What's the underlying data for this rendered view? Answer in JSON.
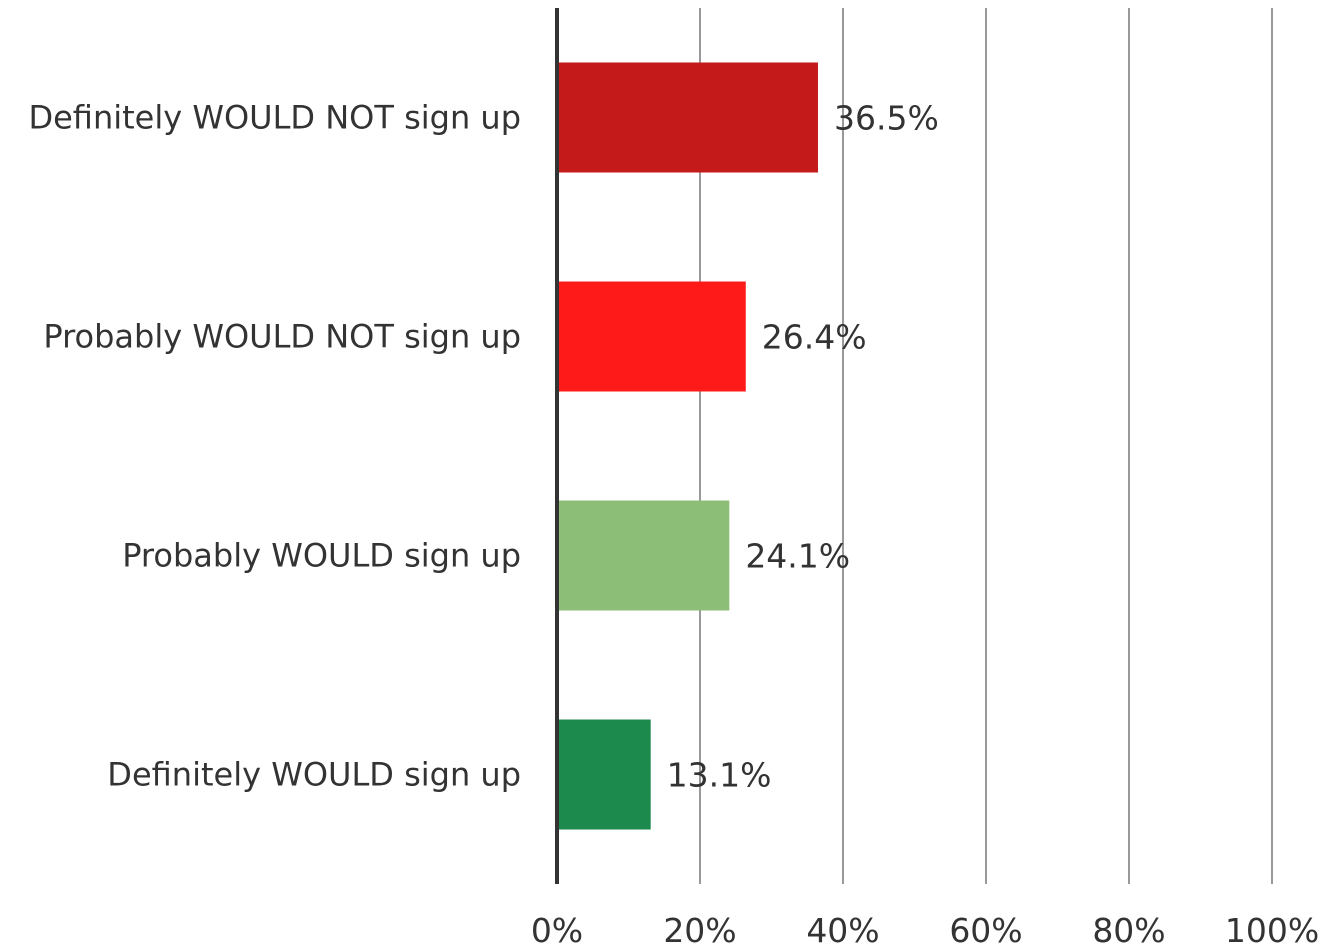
{
  "chart_data": {
    "type": "bar",
    "orientation": "horizontal",
    "title": "",
    "xlabel": "",
    "ylabel": "",
    "categories": [
      "Definitely WOULD NOT sign up",
      "Probably WOULD NOT sign up",
      "Probably WOULD sign up",
      "Definitely WOULD sign up"
    ],
    "values": [
      36.5,
      26.4,
      24.1,
      13.1
    ],
    "data_labels": [
      "36.5%",
      "26.4%",
      "24.1%",
      "13.1%"
    ],
    "colors": [
      "#c41a1a",
      "#ff1a1a",
      "#8cbe78",
      "#1b8a4c"
    ],
    "xlim": [
      0,
      100
    ],
    "xticks": [
      0,
      20,
      40,
      60,
      80,
      100
    ],
    "xtick_labels": [
      "0%",
      "20%",
      "40%",
      "60%",
      "80%",
      "100%"
    ],
    "grid": true,
    "legend": "none"
  }
}
